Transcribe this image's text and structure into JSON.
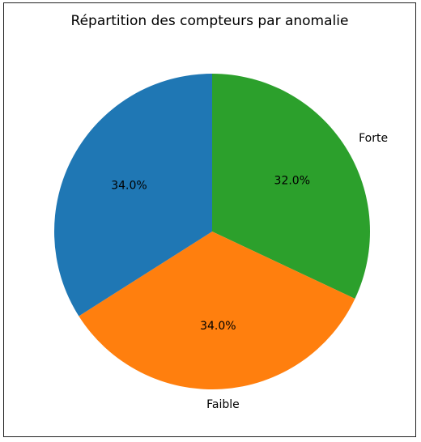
{
  "chart_data": {
    "type": "pie",
    "title": "Répartition des compteurs par anomalie",
    "slices": [
      {
        "label": "Forte",
        "value": 32.0,
        "pct_label": "32.0%",
        "color": "#2ca02c"
      },
      {
        "label": "Faible",
        "value": 34.0,
        "pct_label": "34.0%",
        "color": "#ff7f0e"
      },
      {
        "label": "",
        "value": 34.0,
        "pct_label": "34.0%",
        "color": "#1f77b4"
      }
    ],
    "start_angle": 90,
    "direction": "clockwise"
  }
}
